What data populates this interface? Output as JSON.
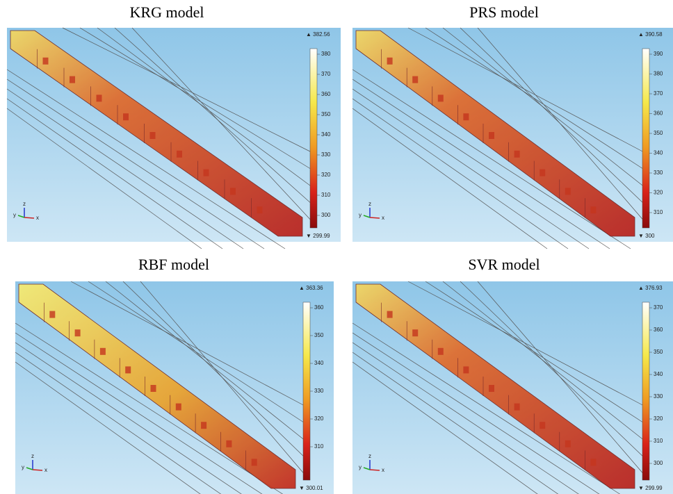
{
  "panels": [
    {
      "title": "KRG model",
      "max_label": "▲ 382.56",
      "min_label": "▼ 299.99",
      "colorbar_ticks": [
        "380",
        "370",
        "360",
        "350",
        "340",
        "330",
        "320",
        "310",
        "300"
      ],
      "axes": [
        "y",
        "z",
        "x"
      ]
    },
    {
      "title": "PRS model",
      "max_label": "▲ 390.58",
      "min_label": "▼ 300",
      "colorbar_ticks": [
        "390",
        "380",
        "370",
        "360",
        "350",
        "340",
        "330",
        "320",
        "310"
      ],
      "axes": [
        "y",
        "z",
        "x"
      ]
    },
    {
      "title": "RBF model",
      "max_label": "▲ 363.36",
      "min_label": "▼ 300.01",
      "colorbar_ticks": [
        "360",
        "350",
        "340",
        "330",
        "320",
        "310"
      ],
      "axes": [
        "y",
        "z",
        "x"
      ]
    },
    {
      "title": "SVR model",
      "max_label": "▲ 376.93",
      "min_label": "▼ 299.99",
      "colorbar_ticks": [
        "370",
        "360",
        "350",
        "340",
        "330",
        "320",
        "310",
        "300"
      ],
      "axes": [
        "y",
        "z",
        "x"
      ]
    }
  ]
}
